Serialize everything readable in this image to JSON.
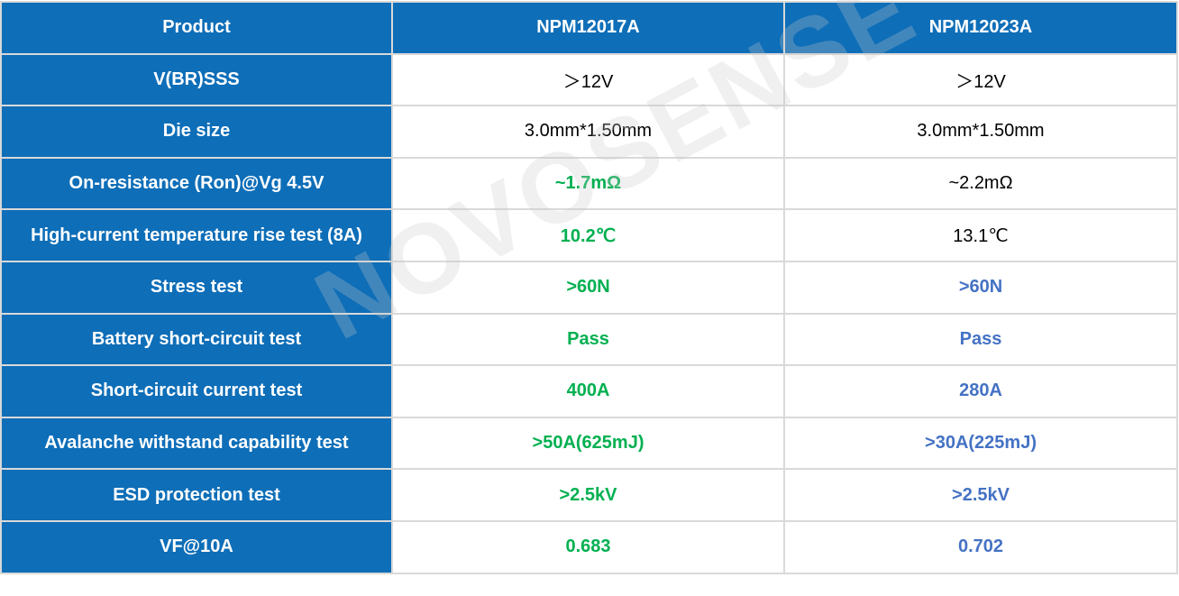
{
  "watermark": "NOVOSENSE",
  "colors": {
    "header_bg": "#0e6eb8",
    "highlight_green": "#00b050",
    "highlight_blue": "#4472c4"
  },
  "header": [
    "Product",
    "NPM12017A",
    "NPM12023A"
  ],
  "rows": [
    {
      "label": "V(BR)SSS",
      "a": "＞12V",
      "b": "＞12V",
      "a_style": "v",
      "b_style": "v"
    },
    {
      "label": "Die size",
      "a": "3.0mm*1.50mm",
      "b": "3.0mm*1.50mm",
      "a_style": "v",
      "b_style": "v"
    },
    {
      "label": "On-resistance  (Ron)@Vg 4.5V",
      "a": "~1.7mΩ",
      "b": "~2.2mΩ",
      "a_style": "g",
      "b_style": "v"
    },
    {
      "label": "High-current temperature rise test (8A)",
      "a": "10.2℃",
      "b": "13.1℃",
      "a_style": "g",
      "b_style": "v"
    },
    {
      "label": "Stress test",
      "a": ">60N",
      "b": ">60N",
      "a_style": "g",
      "b_style": "b"
    },
    {
      "label": "Battery short-circuit test",
      "a": "Pass",
      "b": "Pass",
      "a_style": "g",
      "b_style": "b"
    },
    {
      "label": "Short-circuit current test",
      "a": "400A",
      "b": "280A",
      "a_style": "g",
      "b_style": "b"
    },
    {
      "label": "Avalanche withstand capability test",
      "a": ">50A(625mJ)",
      "b": ">30A(225mJ)",
      "a_style": "g",
      "b_style": "b"
    },
    {
      "label": "ESD protection test",
      "a": ">2.5kV",
      "b": ">2.5kV",
      "a_style": "g",
      "b_style": "b"
    },
    {
      "label": "VF@10A",
      "a": "0.683",
      "b": "0.702",
      "a_style": "g",
      "b_style": "b"
    }
  ]
}
